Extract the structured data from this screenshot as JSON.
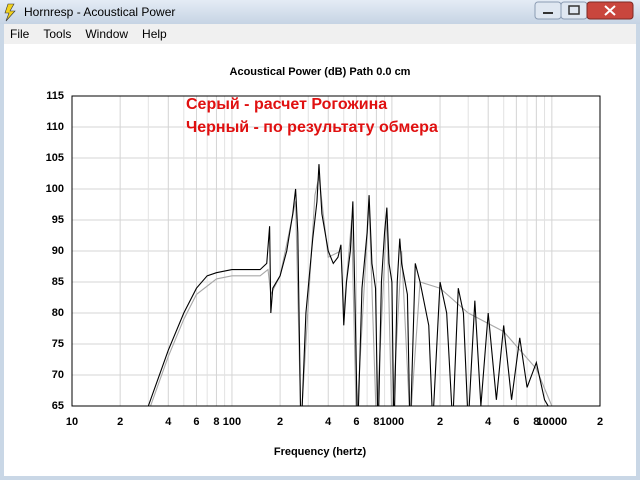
{
  "window": {
    "title": "Hornresp - Acoustical Power"
  },
  "menu": [
    "File",
    "Tools",
    "Window",
    "Help"
  ],
  "chart_data": {
    "type": "line",
    "title": "Acoustical Power (dB)   Path 0.0 cm",
    "x_label": "Frequency (hertz)",
    "annotations": [
      "Серый - расчет Рогожина",
      "Черный - по результату обмера"
    ],
    "annotation_color": "#e01010",
    "x_log": true,
    "grid": true,
    "xlim": [
      10,
      20000
    ],
    "ylim": [
      65,
      115
    ],
    "yticks": [
      65,
      70,
      75,
      80,
      85,
      90,
      95,
      100,
      105,
      110,
      115
    ],
    "xticks": [
      10,
      {
        "value": 20,
        "label": "2"
      },
      {
        "value": 40,
        "label": "4"
      },
      {
        "value": 60,
        "label": "6"
      },
      {
        "value": 80,
        "label": "8"
      },
      100,
      {
        "value": 200,
        "label": "2"
      },
      {
        "value": 400,
        "label": "4"
      },
      {
        "value": 600,
        "label": "6"
      },
      {
        "value": 800,
        "label": "8"
      },
      1000,
      {
        "value": 2000,
        "label": "2"
      },
      {
        "value": 4000,
        "label": "4"
      },
      {
        "value": 6000,
        "label": "6"
      },
      {
        "value": 8000,
        "label": "8"
      },
      10000,
      {
        "value": 20000,
        "label": "2"
      }
    ],
    "x_minor_grid": [
      30,
      50,
      70,
      90,
      300,
      500,
      700,
      900,
      3000,
      5000,
      7000,
      9000
    ],
    "series": [
      {
        "color": "#a8a8a8",
        "x": [
          30,
          40,
          50,
          60,
          80,
          100,
          150,
          168,
          175,
          200,
          250,
          270,
          330,
          350,
          400,
          480,
          500,
          560,
          600,
          720,
          800,
          930,
          1000,
          1150,
          1300,
          1500,
          2000,
          3000,
          5000,
          8000,
          10000
        ],
        "values": [
          64,
          73,
          79,
          83,
          85.5,
          86,
          86,
          87,
          83,
          86,
          98,
          62,
          99,
          102,
          89,
          90,
          80,
          95,
          62,
          98,
          62,
          96,
          62,
          90,
          62,
          85,
          84,
          80,
          77,
          71,
          65
        ]
      },
      {
        "color": "#000000",
        "x": [
          30,
          40,
          50,
          60,
          70,
          80,
          100,
          150,
          165,
          172,
          175,
          180,
          200,
          220,
          240,
          250,
          258,
          270,
          290,
          320,
          340,
          350,
          365,
          400,
          430,
          460,
          480,
          490,
          500,
          520,
          550,
          570,
          590,
          610,
          650,
          700,
          720,
          750,
          790,
          820,
          860,
          900,
          930,
          960,
          1000,
          1030,
          1080,
          1120,
          1150,
          1250,
          1300,
          1400,
          1500,
          1700,
          1800,
          2000,
          2200,
          2400,
          2600,
          2800,
          3000,
          3300,
          3600,
          4000,
          4500,
          5000,
          5600,
          6300,
          7000,
          8000,
          9000,
          10000
        ],
        "values": [
          65,
          74,
          80,
          84,
          86,
          86.5,
          87,
          87,
          88,
          94,
          80,
          84,
          86,
          90,
          96,
          100,
          93,
          60,
          80,
          92,
          98,
          104,
          96,
          90,
          88,
          89,
          91,
          85,
          78,
          85,
          90,
          98,
          80,
          60,
          84,
          93,
          99,
          88,
          84,
          60,
          85,
          93,
          97,
          88,
          85,
          60,
          85,
          92,
          88,
          83,
          60,
          88,
          85,
          78,
          62,
          85,
          80,
          62,
          84,
          80,
          62,
          82,
          65,
          80,
          66,
          78,
          66,
          76,
          68,
          72,
          66,
          64
        ]
      }
    ]
  }
}
